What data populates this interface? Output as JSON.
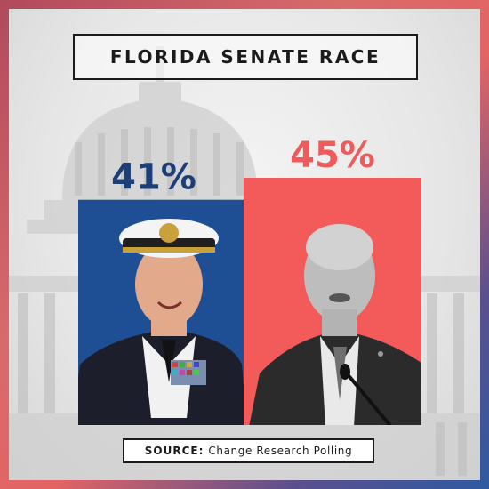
{
  "title": "FLORIDA SENATE RACE",
  "source": {
    "label": "SOURCE:",
    "text": "Change Research Polling"
  },
  "colors": {
    "blue": "#1e4f95",
    "red": "#f35a5a",
    "blue_text": "#1d3f78",
    "red_text": "#f15a5a"
  },
  "chart_data": {
    "type": "bar",
    "title": "FLORIDA SENATE RACE",
    "categories": [
      "",
      ""
    ],
    "values": [
      41,
      45
    ],
    "value_labels": [
      "41%",
      "45%"
    ],
    "colors": [
      "#1e4f95",
      "#f35a5a"
    ],
    "ylim": [
      0,
      45
    ],
    "grid": false,
    "legend": "none",
    "images": [
      "candidate-photo-navy-officer",
      "candidate-photo-bald-man-at-microphone"
    ]
  }
}
